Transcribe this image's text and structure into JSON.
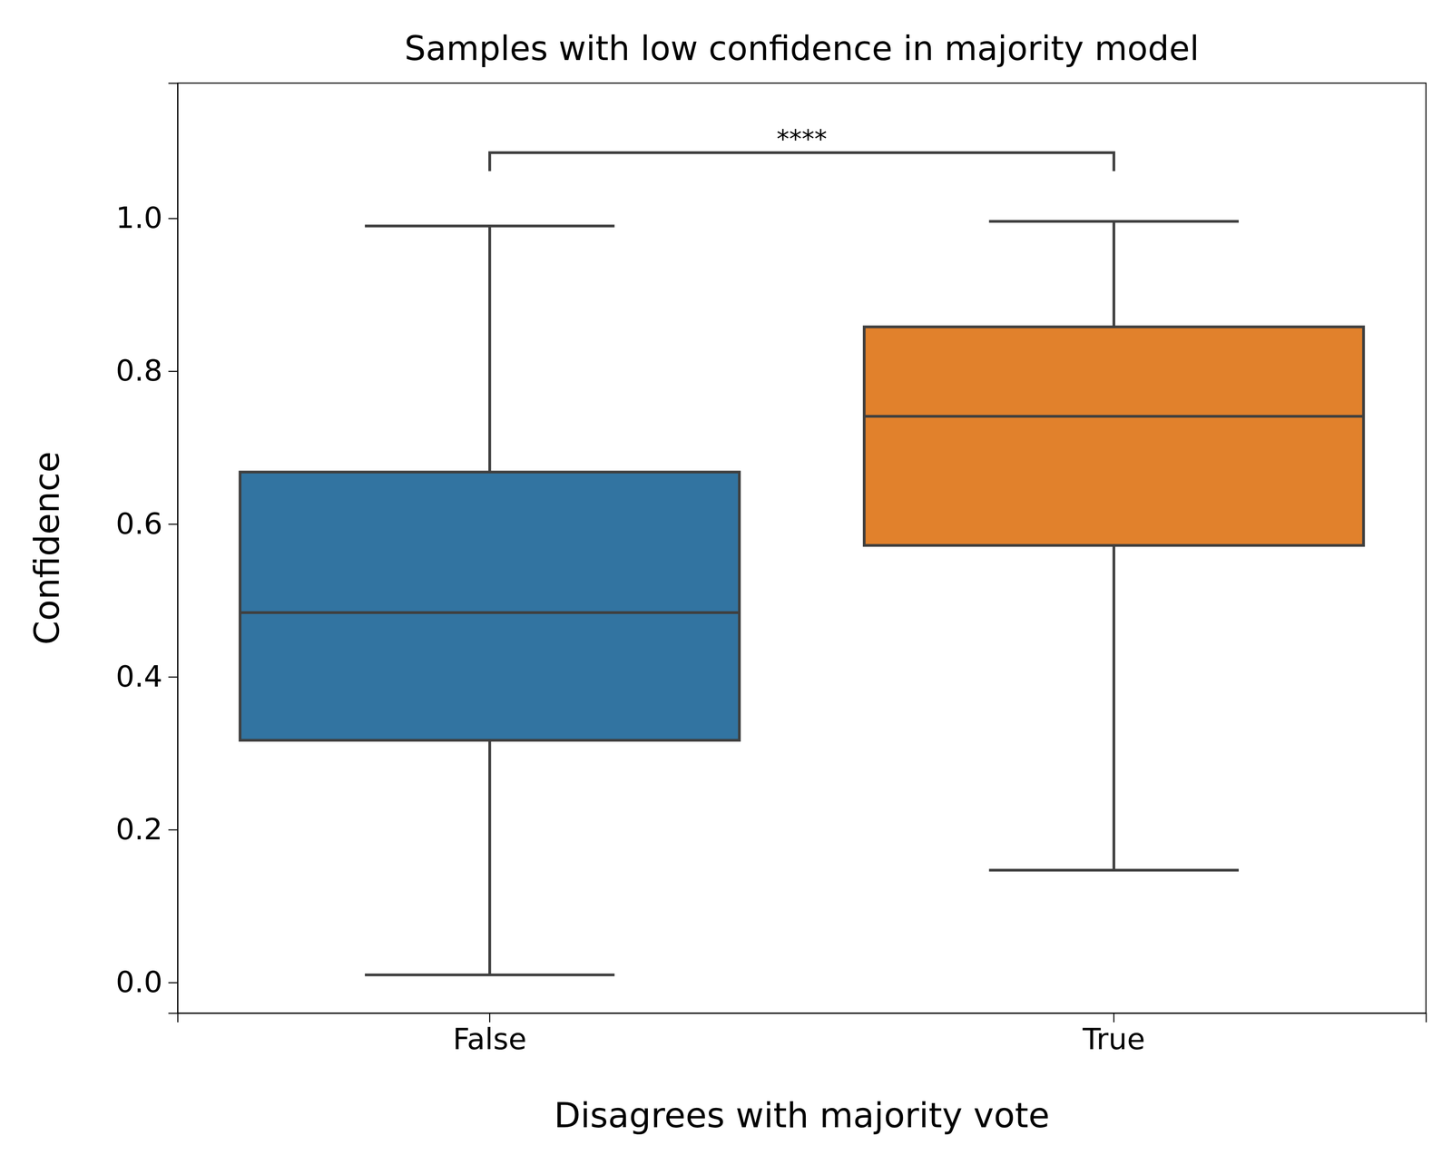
{
  "chart_data": {
    "type": "box",
    "title": "Samples with low confidence in majority model",
    "x_label": "Disagrees with majority vote",
    "y_label": "Confidence",
    "categories": [
      "False",
      "True"
    ],
    "boxes": [
      {
        "whisker_low": 0.01,
        "q1": 0.317,
        "median": 0.484,
        "q3": 0.668,
        "whisker_high": 0.99
      },
      {
        "whisker_low": 0.147,
        "q1": 0.572,
        "median": 0.741,
        "q3": 0.858,
        "whisker_high": 0.996
      }
    ],
    "colors": [
      "#3274a1",
      "#e1812c"
    ],
    "ylim": [
      -0.04,
      1.177
    ],
    "yticks": [
      {
        "value": 0,
        "label": "0.0"
      },
      0.2,
      0.4,
      0.6,
      0.8,
      {
        "value": 1,
        "label": "1.0"
      }
    ],
    "grid": false,
    "annotations": [
      {
        "text": "****",
        "x": [
          0,
          1
        ],
        "y": 1.086
      }
    ]
  }
}
